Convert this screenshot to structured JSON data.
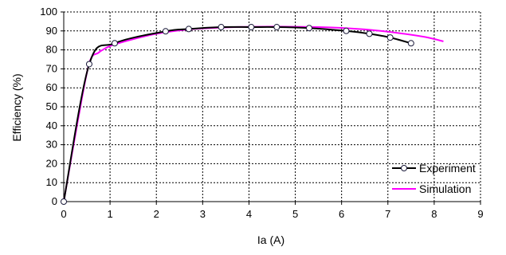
{
  "chart_data": {
    "type": "line",
    "xlabel": "Ia (A)",
    "ylabel": "Efficiency (%)",
    "xlim": [
      0,
      9
    ],
    "ylim": [
      0,
      100
    ],
    "x_ticks": [
      0,
      1,
      2,
      3,
      4,
      5,
      6,
      7,
      8,
      9
    ],
    "y_ticks": [
      0,
      10,
      20,
      30,
      40,
      50,
      60,
      70,
      80,
      90,
      100
    ],
    "grid": true,
    "grid_style": "dashed",
    "legend_position": "bottom-right",
    "series": [
      {
        "name": "Experiment",
        "color": "#000000",
        "marker": "open-circle",
        "x": [
          0,
          0.55,
          1.1,
          2.2,
          2.7,
          3.4,
          4.05,
          4.6,
          5.3,
          6.1,
          6.6,
          7.05,
          7.5
        ],
        "y": [
          0,
          72.5,
          83.5,
          89.8,
          91.0,
          92.0,
          92.0,
          92.0,
          91.5,
          90.0,
          88.5,
          86.5,
          83.5
        ]
      },
      {
        "name": "Simulation",
        "color": "#ff00ff",
        "marker": "none",
        "x": [
          0,
          0.3,
          0.55,
          0.75,
          1.0,
          1.4,
          2.0,
          2.7,
          3.4,
          4.1,
          5.0,
          5.8,
          6.5,
          7.2,
          7.8,
          8.2
        ],
        "y": [
          0,
          42,
          73,
          78.5,
          82,
          85,
          88.5,
          90.8,
          91.8,
          92.2,
          92.2,
          91.8,
          90.8,
          89.0,
          86.8,
          84.5
        ]
      }
    ]
  }
}
